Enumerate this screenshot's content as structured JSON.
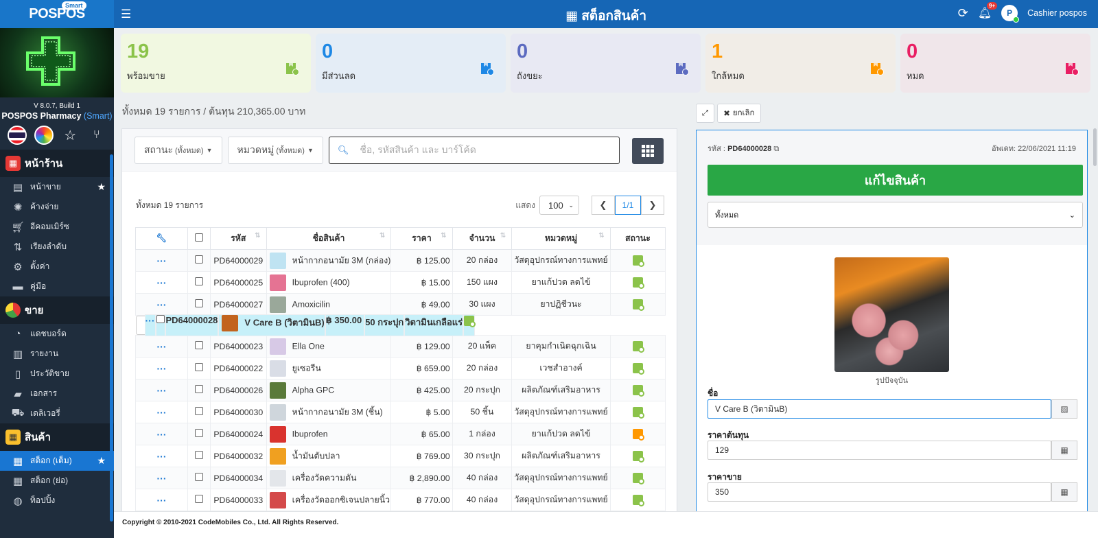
{
  "app": {
    "logo": "POSPOS",
    "badge": "Smart",
    "version": "V 8.0.7, Build 1",
    "name": "POSPOS Pharmacy",
    "edition": "(Smart)"
  },
  "sidebar": {
    "sections": [
      {
        "title": "หน้าร้าน",
        "items": [
          "หน้าขาย",
          "ค้างจ่าย",
          "อีคอมเมิร์ซ",
          "เรียงลำดับ",
          "ตั้งค่า",
          "คู่มือ"
        ]
      },
      {
        "title": "ขาย",
        "items": [
          "แดชบอร์ด",
          "รายงาน",
          "ประวัติขาย",
          "เอกสาร",
          "เดลิเวอรี่"
        ]
      },
      {
        "title": "สินค้า",
        "items": [
          "สต็อก (เต็ม)",
          "สต็อก (ย่อ)",
          "ท็อปปิ้ง"
        ]
      }
    ]
  },
  "topbar": {
    "title": "สต็อกสินค้า",
    "notif_badge": "9+",
    "user": "Cashier pospos"
  },
  "cards": [
    {
      "value": "19",
      "label": "พร้อมขาย",
      "color": "#8bc34a",
      "bg": "#f1f8e1"
    },
    {
      "value": "0",
      "label": "มีส่วนลด",
      "color": "#1e88e5",
      "bg": "#e4edf6"
    },
    {
      "value": "0",
      "label": "ถังขยะ",
      "color": "#5c6bc0",
      "bg": "#e8e9f3"
    },
    {
      "value": "1",
      "label": "ใกล้หมด",
      "color": "#ff9800",
      "bg": "#f1ede7"
    },
    {
      "value": "0",
      "label": "หมด",
      "color": "#e91e63",
      "bg": "#f0e6ea"
    }
  ],
  "summary": "ทั้งหมด 19 รายการ / ต้นทุน 210,365.00 บาท",
  "actions": {
    "cancel": "ยกเลิก"
  },
  "filters": {
    "status": "สถานะ",
    "status_sub": "(ทั้งหมด)",
    "category": "หมวดหมู่",
    "category_sub": "(ทั้งหมด)",
    "search_placeholder": "ชื่อ, รหัสสินค้า และ บาร์โค้ด"
  },
  "table": {
    "count_text": "ทั้งหมด 19 รายการ",
    "show_label": "แสดง",
    "page_size": "100",
    "page": "1/1",
    "columns": [
      "รหัส",
      "ชื่อสินค้า",
      "ราคา",
      "จำนวน",
      "หมวดหมู่",
      "สถานะ"
    ],
    "rows": [
      {
        "code": "PD64000029",
        "name": "หน้ากากอนามัย 3M (กล่อง)",
        "price": "฿ 125.00",
        "qty": "20 กล่อง",
        "cat": "วัสดุอุปกรณ์ทางการแพทย์",
        "status": "#8bc34a",
        "thumb": "#bfe3f2"
      },
      {
        "code": "PD64000025",
        "name": "Ibuprofen (400)",
        "price": "฿ 15.00",
        "qty": "150 แผง",
        "cat": "ยาแก้ปวด ลดไข้",
        "status": "#8bc34a",
        "thumb": "#e57393"
      },
      {
        "code": "PD64000027",
        "name": "Amoxicilin",
        "price": "฿ 49.00",
        "qty": "30 แผง",
        "cat": "ยาปฏิชีวนะ",
        "status": "#8bc34a",
        "thumb": "#9aa89a"
      },
      {
        "code": "PD64000028",
        "name": "V Care B (วิตามินB)",
        "price": "฿ 350.00",
        "qty": "50 กระปุก",
        "cat": "วิตามินเกลือแร่",
        "status": "#8bc34a",
        "thumb": "#c2631d",
        "selected": true
      },
      {
        "code": "PD64000023",
        "name": "Ella One",
        "price": "฿ 129.00",
        "qty": "20 แพ็ค",
        "cat": "ยาคุมกำเนิดฉุกเฉิน",
        "status": "#8bc34a",
        "thumb": "#d7c9e6"
      },
      {
        "code": "PD64000022",
        "name": "ยูเซอรีน",
        "price": "฿ 659.00",
        "qty": "20 กล่อง",
        "cat": "เวชสำอางค์",
        "status": "#8bc34a",
        "thumb": "#d9dde6"
      },
      {
        "code": "PD64000026",
        "name": "Alpha GPC",
        "price": "฿ 425.00",
        "qty": "20 กระปุก",
        "cat": "ผลิตภัณฑ์เสริมอาหาร",
        "status": "#8bc34a",
        "thumb": "#5a7a3a"
      },
      {
        "code": "PD64000030",
        "name": "หน้ากากอนามัย 3M (ชิ้น)",
        "price": "฿ 5.00",
        "qty": "50 ชิ้น",
        "cat": "วัสดุอุปกรณ์ทางการแพทย์",
        "status": "#8bc34a",
        "thumb": "#cfd6dc"
      },
      {
        "code": "PD64000024",
        "name": "Ibuprofen",
        "price": "฿ 65.00",
        "qty": "1 กล่อง",
        "cat": "ยาแก้ปวด ลดไข้",
        "status": "#ff9800",
        "thumb": "#d9332e"
      },
      {
        "code": "PD64000032",
        "name": "น้ำมันตับปลา",
        "price": "฿ 769.00",
        "qty": "30 กระปุก",
        "cat": "ผลิตภัณฑ์เสริมอาหาร",
        "status": "#8bc34a",
        "thumb": "#f0a020"
      },
      {
        "code": "PD64000034",
        "name": "เครื่องวัดความดัน",
        "price": "฿ 2,890.00",
        "qty": "40 กล่อง",
        "cat": "วัสดุอุปกรณ์ทางการแพทย์",
        "status": "#8bc34a",
        "thumb": "#e3e6ea"
      },
      {
        "code": "PD64000033",
        "name": "เครื่องวัดออกซิเจนปลายนิ้ว",
        "price": "฿ 770.00",
        "qty": "40 กล่อง",
        "cat": "วัสดุอุปกรณ์ทางการแพทย์",
        "status": "#8bc34a",
        "thumb": "#d44a4a"
      }
    ]
  },
  "detail": {
    "code_label": "รหัส :",
    "code": "PD64000028",
    "updated": "อัพเดท: 22/06/2021 11:19",
    "edit_button": "แก้ไขสินค้า",
    "select_value": "ทั้งหมด",
    "image_caption": "รูปปัจจุบัน",
    "name_label": "ชื่อ",
    "name_value": "V Care B (วิตามินB)",
    "cost_label": "ราคาต้นทุน",
    "cost_value": "129",
    "price_label": "ราคาขาย",
    "price_value": "350"
  },
  "footer": "Copyright © 2010-2021 CodeMobiles Co., Ltd. All Rights Reserved."
}
